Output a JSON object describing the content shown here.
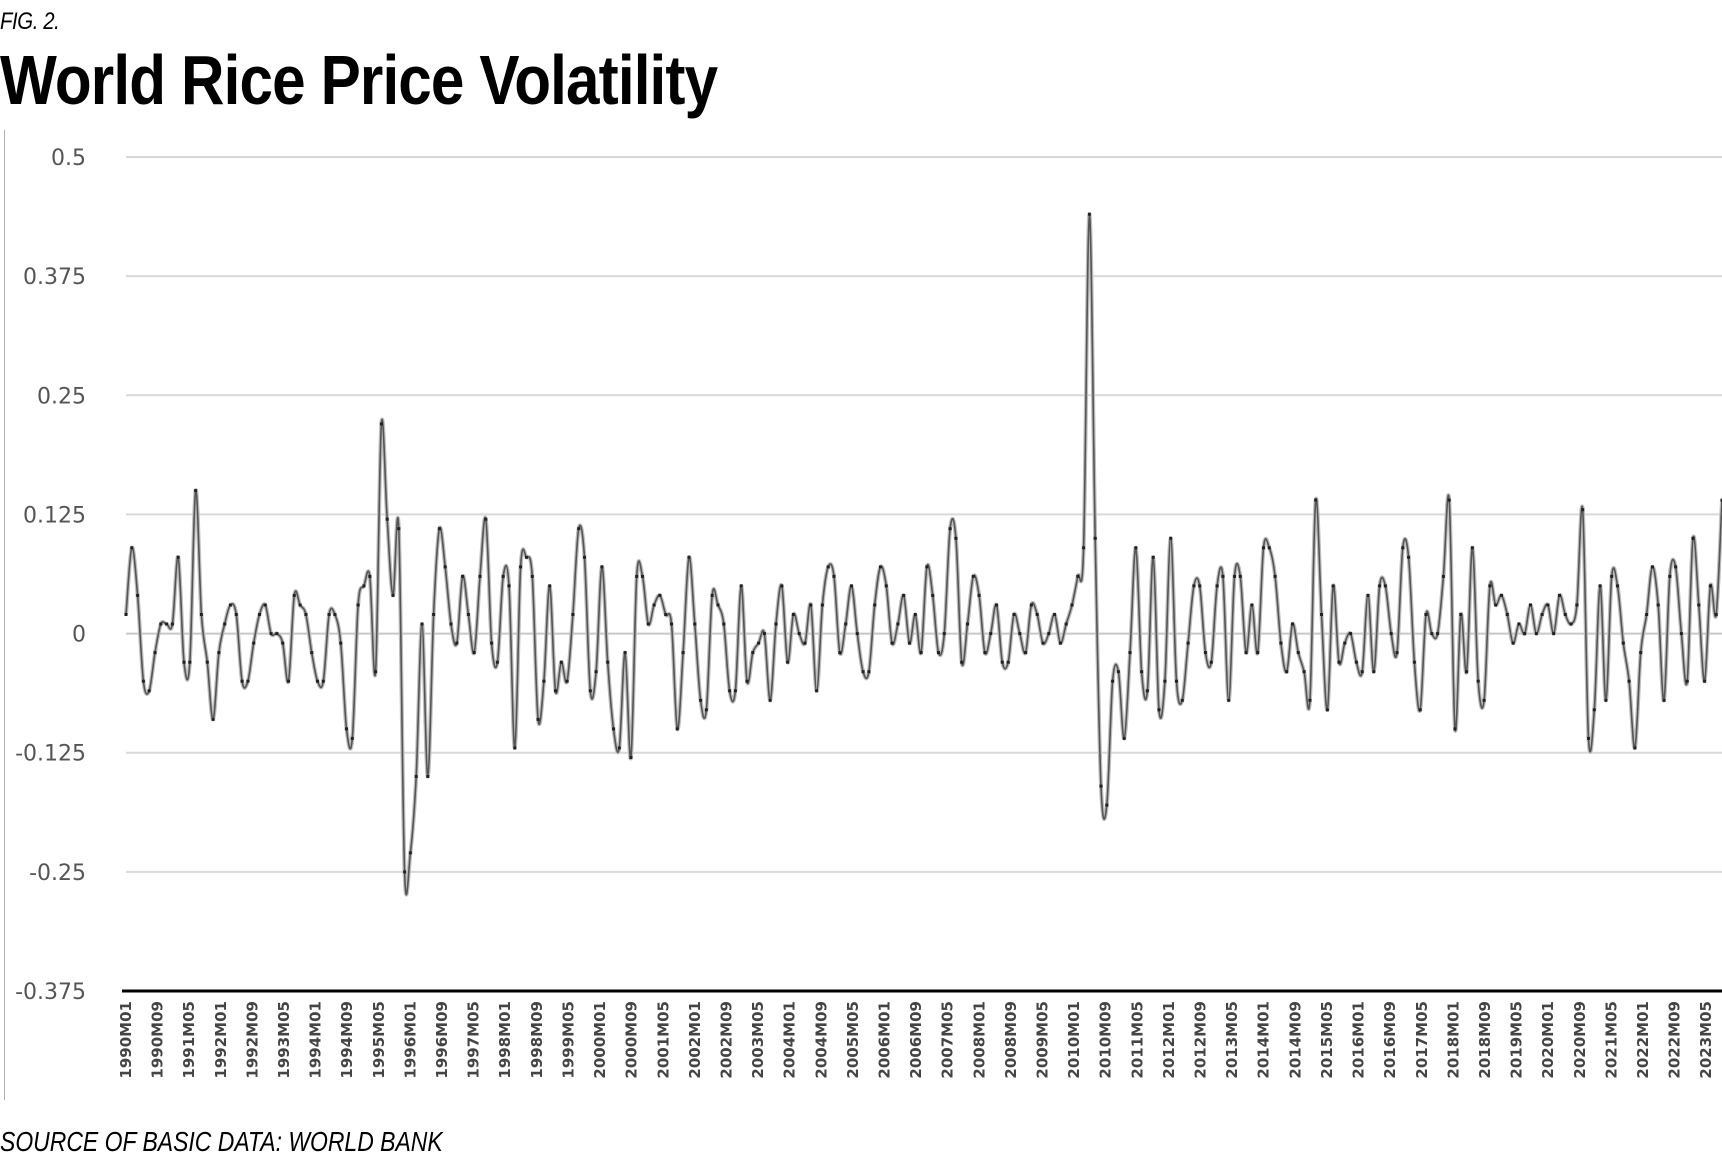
{
  "figure": {
    "label": "FIG. 2.",
    "title": "World Rice Price Volatility",
    "source": "SOURCE OF BASIC DATA: WORLD BANK"
  },
  "chart_data": {
    "type": "line",
    "title": "World Rice Price Volatility",
    "xlabel": "",
    "ylabel": "",
    "ylim": [
      -0.375,
      0.5
    ],
    "yticks": [
      0.5,
      0.375,
      0.25,
      0.125,
      0,
      -0.125,
      -0.25,
      -0.375
    ],
    "ytick_labels": [
      "0.5",
      "0.375",
      "0.25",
      "0.125",
      "0",
      "-0.125",
      "-0.25",
      "-0.375"
    ],
    "grid": true,
    "legend": "none",
    "x_start": "1990M01",
    "x_frequency": "monthly",
    "xtick_labels": [
      "1990M01",
      "1990M09",
      "1991M05",
      "1992M01",
      "1992M09",
      "1993M05",
      "1994M01",
      "1994M09",
      "1995M05",
      "1996M01",
      "1996M09",
      "1997M05",
      "1998M01",
      "1998M09",
      "1999M05",
      "2000M01",
      "2000M09",
      "2001M05",
      "2002M01",
      "2002M09",
      "2003M05",
      "2004M01",
      "2004M09",
      "2005M05",
      "2006M01",
      "2006M09",
      "2007M05",
      "2008M01",
      "2008M09",
      "2009M05",
      "2010M01",
      "2010M09",
      "2011M05",
      "2012M01",
      "2012M09",
      "2013M05",
      "2014M01",
      "2014M09",
      "2015M05",
      "2016M01",
      "2016M09",
      "2017M05",
      "2018M01",
      "2018M09",
      "2019M05",
      "2020M01",
      "2020M09",
      "2021M05",
      "2022M01",
      "2022M09",
      "2023M05"
    ],
    "series": [
      {
        "name": "Rice price volatility",
        "color": "#555555",
        "values": [
          0.02,
          0.09,
          0.04,
          -0.05,
          -0.06,
          -0.02,
          0.01,
          0.01,
          0.01,
          0.08,
          -0.03,
          -0.03,
          0.15,
          0.02,
          -0.03,
          -0.09,
          -0.02,
          0.01,
          0.03,
          0.02,
          -0.05,
          -0.05,
          -0.01,
          0.02,
          0.03,
          0.0,
          0.0,
          -0.01,
          -0.05,
          0.04,
          0.03,
          0.02,
          -0.02,
          -0.05,
          -0.05,
          0.02,
          0.02,
          -0.01,
          -0.1,
          -0.11,
          0.03,
          0.05,
          0.06,
          -0.04,
          0.22,
          0.12,
          0.04,
          0.11,
          -0.25,
          -0.23,
          -0.15,
          0.01,
          -0.15,
          0.02,
          0.11,
          0.07,
          0.01,
          -0.01,
          0.06,
          0.02,
          -0.02,
          0.06,
          0.12,
          -0.01,
          -0.03,
          0.06,
          0.05,
          -0.12,
          0.07,
          0.08,
          0.06,
          -0.09,
          -0.05,
          0.05,
          -0.06,
          -0.03,
          -0.05,
          0.02,
          0.11,
          0.08,
          -0.06,
          -0.04,
          0.07,
          -0.03,
          -0.1,
          -0.12,
          -0.02,
          -0.13,
          0.06,
          0.06,
          0.01,
          0.03,
          0.04,
          0.02,
          0.01,
          -0.1,
          -0.02,
          0.08,
          0.01,
          -0.07,
          -0.08,
          0.04,
          0.03,
          0.01,
          -0.06,
          -0.06,
          0.05,
          -0.05,
          -0.02,
          -0.01,
          0.0,
          -0.07,
          0.01,
          0.05,
          -0.03,
          0.02,
          0.0,
          -0.01,
          0.03,
          -0.06,
          0.03,
          0.07,
          0.06,
          -0.02,
          0.01,
          0.05,
          0.0,
          -0.04,
          -0.04,
          0.03,
          0.07,
          0.05,
          -0.01,
          0.01,
          0.04,
          -0.01,
          0.02,
          -0.02,
          0.07,
          0.04,
          -0.02,
          0.0,
          0.11,
          0.1,
          -0.03,
          0.01,
          0.06,
          0.04,
          -0.02,
          0.0,
          0.03,
          -0.03,
          -0.03,
          0.02,
          0.0,
          -0.02,
          0.03,
          0.02,
          -0.01,
          0.0,
          0.02,
          -0.01,
          0.01,
          0.03,
          0.06,
          0.09,
          0.44,
          0.1,
          -0.16,
          -0.18,
          -0.05,
          -0.04,
          -0.11,
          -0.02,
          0.09,
          -0.04,
          -0.06,
          0.08,
          -0.08,
          -0.05,
          0.1,
          -0.05,
          -0.07,
          -0.01,
          0.05,
          0.05,
          -0.02,
          -0.03,
          0.05,
          0.06,
          -0.07,
          0.06,
          0.06,
          -0.02,
          0.03,
          -0.02,
          0.09,
          0.09,
          0.06,
          -0.01,
          -0.04,
          0.01,
          -0.02,
          -0.04,
          -0.07,
          0.14,
          0.02,
          -0.08,
          0.05,
          -0.03,
          -0.01,
          0.0,
          -0.03,
          -0.04,
          0.04,
          -0.04,
          0.05,
          0.05,
          0.0,
          -0.02,
          0.09,
          0.08,
          -0.03,
          -0.08,
          0.02,
          0.0,
          0.0,
          0.06,
          0.14,
          -0.1,
          0.02,
          -0.04,
          0.09,
          -0.05,
          -0.07,
          0.05,
          0.03,
          0.04,
          0.02,
          -0.01,
          0.01,
          0.0,
          0.03,
          0.0,
          0.02,
          0.03,
          0.0,
          0.04,
          0.02,
          0.01,
          0.03,
          0.13,
          -0.11,
          -0.08,
          0.05,
          -0.07,
          0.06,
          0.05,
          -0.01,
          -0.05,
          -0.12,
          -0.02,
          0.02,
          0.07,
          0.03,
          -0.07,
          0.06,
          0.07,
          0.0,
          -0.05,
          0.1,
          0.03,
          -0.05,
          0.05,
          0.02,
          0.14
        ]
      }
    ],
    "annotations": []
  }
}
